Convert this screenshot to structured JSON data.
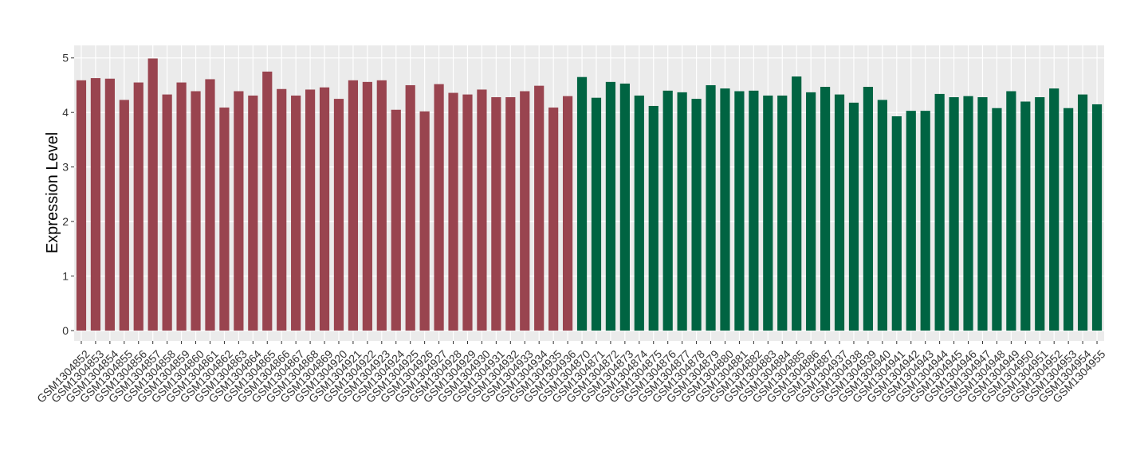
{
  "chart_data": {
    "type": "bar",
    "y_label": "Expression Level",
    "categories": [
      "GSM1304852",
      "GSM1304853",
      "GSM1304854",
      "GSM1304855",
      "GSM1304856",
      "GSM1304857",
      "GSM1304858",
      "GSM1304859",
      "GSM1304860",
      "GSM1304861",
      "GSM1304862",
      "GSM1304863",
      "GSM1304864",
      "GSM1304865",
      "GSM1304866",
      "GSM1304867",
      "GSM1304868",
      "GSM1304869",
      "GSM1304920",
      "GSM1304921",
      "GSM1304922",
      "GSM1304923",
      "GSM1304924",
      "GSM1304925",
      "GSM1304926",
      "GSM1304927",
      "GSM1304928",
      "GSM1304929",
      "GSM1304930",
      "GSM1304931",
      "GSM1304932",
      "GSM1304933",
      "GSM1304934",
      "GSM1304935",
      "GSM1304936",
      "GSM1304870",
      "GSM1304871",
      "GSM1304872",
      "GSM1304873",
      "GSM1304874",
      "GSM1304875",
      "GSM1304876",
      "GSM1304877",
      "GSM1304878",
      "GSM1304879",
      "GSM1304880",
      "GSM1304881",
      "GSM1304882",
      "GSM1304883",
      "GSM1304884",
      "GSM1304885",
      "GSM1304886",
      "GSM1304887",
      "GSM1304937",
      "GSM1304938",
      "GSM1304939",
      "GSM1304940",
      "GSM1304941",
      "GSM1304942",
      "GSM1304943",
      "GSM1304944",
      "GSM1304945",
      "GSM1304946",
      "GSM1304947",
      "GSM1304948",
      "GSM1304949",
      "GSM1304950",
      "GSM1304951",
      "GSM1304952",
      "GSM1304953",
      "GSM1304954",
      "GSM1304955"
    ],
    "values": [
      4.59,
      4.63,
      4.62,
      4.23,
      4.55,
      4.99,
      4.33,
      4.55,
      4.39,
      4.61,
      4.09,
      4.39,
      4.31,
      4.75,
      4.43,
      4.31,
      4.42,
      4.46,
      4.25,
      4.59,
      4.56,
      4.59,
      4.05,
      4.5,
      4.02,
      4.52,
      4.36,
      4.33,
      4.42,
      4.28,
      4.28,
      4.39,
      4.49,
      4.09,
      4.3,
      4.65,
      4.27,
      4.56,
      4.53,
      4.31,
      4.12,
      4.4,
      4.37,
      4.25,
      4.5,
      4.44,
      4.39,
      4.4,
      4.31,
      4.31,
      4.66,
      4.37,
      4.47,
      4.33,
      4.18,
      4.47,
      4.23,
      3.93,
      4.03,
      4.03,
      4.34,
      4.28,
      4.3,
      4.28,
      4.08,
      4.39,
      4.2,
      4.28,
      4.44,
      4.08,
      4.33,
      4.15
    ],
    "bar_colors": [
      "#99444f",
      "#99444f",
      "#99444f",
      "#99444f",
      "#99444f",
      "#99444f",
      "#99444f",
      "#99444f",
      "#99444f",
      "#99444f",
      "#99444f",
      "#99444f",
      "#99444f",
      "#99444f",
      "#99444f",
      "#99444f",
      "#99444f",
      "#99444f",
      "#99444f",
      "#99444f",
      "#99444f",
      "#99444f",
      "#99444f",
      "#99444f",
      "#99444f",
      "#99444f",
      "#99444f",
      "#99444f",
      "#99444f",
      "#99444f",
      "#99444f",
      "#99444f",
      "#99444f",
      "#99444f",
      "#99444f",
      "#006442",
      "#006442",
      "#006442",
      "#006442",
      "#006442",
      "#006442",
      "#006442",
      "#006442",
      "#006442",
      "#006442",
      "#006442",
      "#006442",
      "#006442",
      "#006442",
      "#006442",
      "#006442",
      "#006442",
      "#006442",
      "#006442",
      "#006442",
      "#006442",
      "#006442",
      "#006442",
      "#006442",
      "#006442",
      "#006442",
      "#006442",
      "#006442",
      "#006442",
      "#006442",
      "#006442",
      "#006442",
      "#006442",
      "#006442",
      "#006442",
      "#006442",
      "#006442"
    ],
    "ylim": [
      -0.19,
      5.23
    ],
    "yticks": [
      0,
      1,
      2,
      3,
      4,
      5
    ],
    "grid": true
  }
}
